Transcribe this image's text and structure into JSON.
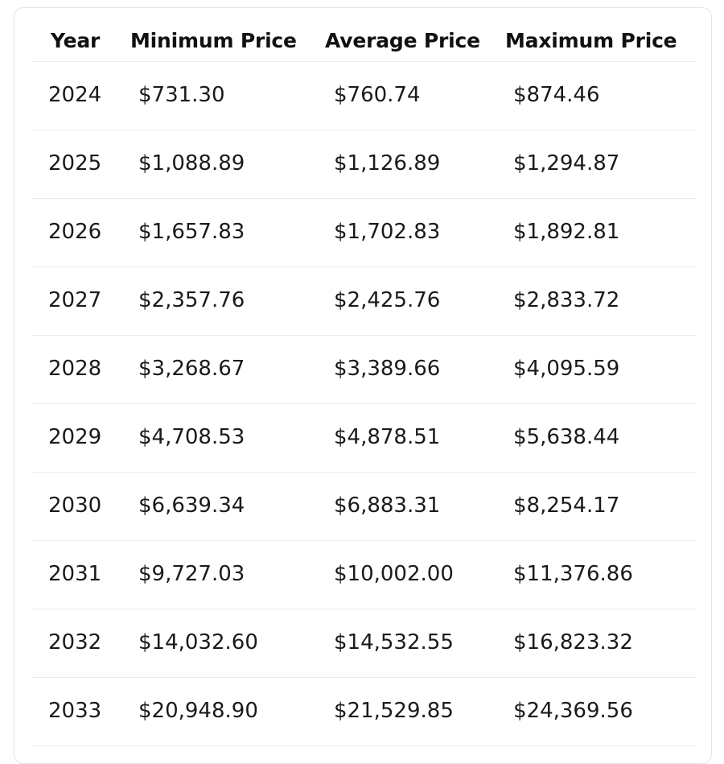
{
  "table": {
    "headers": [
      "Year",
      "Minimum Price",
      "Average Price",
      "Maximum Price"
    ],
    "rows": [
      [
        "2024",
        "$731.30",
        "$760.74",
        "$874.46"
      ],
      [
        "2025",
        "$1,088.89",
        "$1,126.89",
        "$1,294.87"
      ],
      [
        "2026",
        "$1,657.83",
        "$1,702.83",
        "$1,892.81"
      ],
      [
        "2027",
        "$2,357.76",
        "$2,425.76",
        "$2,833.72"
      ],
      [
        "2028",
        "$3,268.67",
        "$3,389.66",
        "$4,095.59"
      ],
      [
        "2029",
        "$4,708.53",
        "$4,878.51",
        "$5,638.44"
      ],
      [
        "2030",
        "$6,639.34",
        "$6,883.31",
        "$8,254.17"
      ],
      [
        "2031",
        "$9,727.03",
        "$10,002.00",
        "$11,376.86"
      ],
      [
        "2032",
        "$14,032.60",
        "$14,532.55",
        "$16,823.32"
      ],
      [
        "2033",
        "$20,948.90",
        "$21,529.85",
        "$24,369.56"
      ]
    ]
  }
}
